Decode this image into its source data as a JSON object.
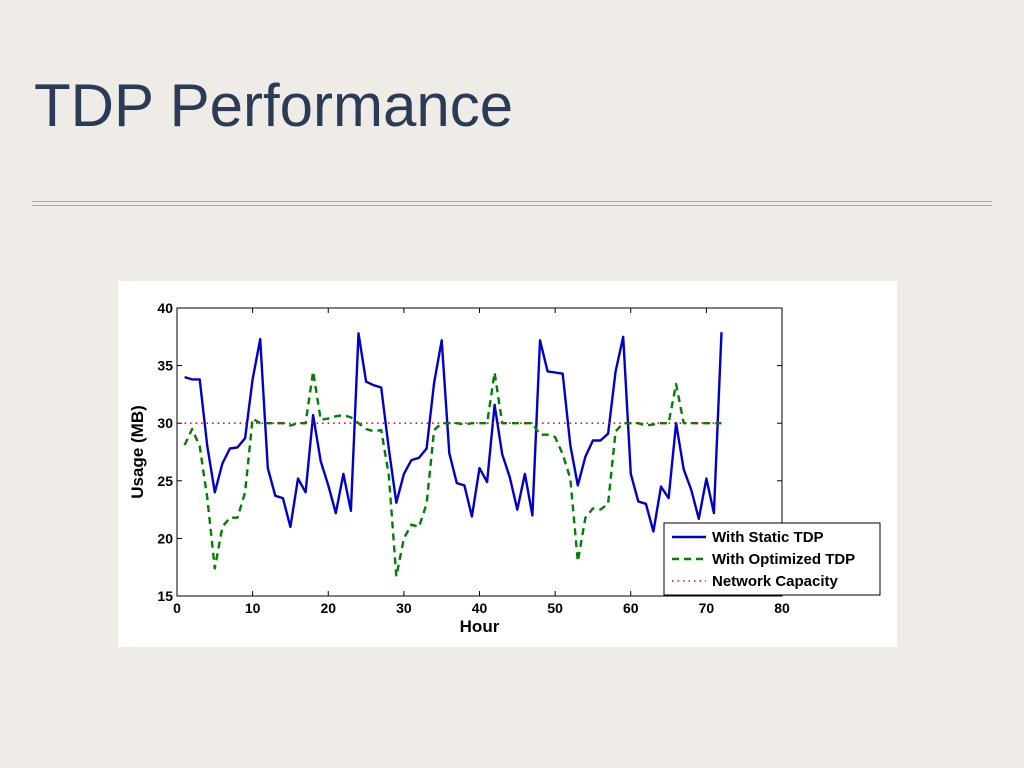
{
  "slide": {
    "title": "TDP Performance"
  },
  "chart_data": {
    "type": "line",
    "title": "",
    "xlabel": "Hour",
    "ylabel": "Usage (MB)",
    "xlim": [
      0,
      80
    ],
    "ylim": [
      15,
      40
    ],
    "xticks": [
      0,
      10,
      20,
      30,
      40,
      50,
      60,
      70,
      80
    ],
    "yticks": [
      15,
      20,
      25,
      30,
      35,
      40
    ],
    "grid": false,
    "legend_position": "bottom-right",
    "series": [
      {
        "name": "With Static TDP",
        "color": "#0000cc",
        "style": "solid",
        "x": [
          1,
          2,
          3,
          4,
          5,
          6,
          7,
          8,
          9,
          10,
          11,
          12,
          13,
          14,
          15,
          16,
          17,
          18,
          19,
          20,
          21,
          22,
          23,
          24,
          25,
          26,
          27,
          28,
          29,
          30,
          31,
          32,
          33,
          34,
          35,
          36,
          37,
          38,
          39,
          40,
          41,
          42,
          43,
          44,
          45,
          46,
          47,
          48,
          49,
          50,
          51,
          52,
          53,
          54,
          55,
          56,
          57,
          58,
          59,
          60,
          61,
          62,
          63,
          64,
          65,
          66,
          67,
          68,
          69,
          70,
          71,
          72
        ],
        "y": [
          34.0,
          33.8,
          33.8,
          28.0,
          24.0,
          26.5,
          27.8,
          27.9,
          28.7,
          33.8,
          37.3,
          26.1,
          23.7,
          23.5,
          21.0,
          25.2,
          24.0,
          30.7,
          26.7,
          24.6,
          22.2,
          25.6,
          22.4,
          37.8,
          33.6,
          33.3,
          33.1,
          27.8,
          23.1,
          25.6,
          26.8,
          27.0,
          27.8,
          33.5,
          37.2,
          27.4,
          24.8,
          24.6,
          21.9,
          26.1,
          24.9,
          31.6,
          27.3,
          25.3,
          22.5,
          25.6,
          22.0,
          37.2,
          34.5,
          34.4,
          34.3,
          28.1,
          24.6,
          27.1,
          28.5,
          28.5,
          29.1,
          34.5,
          37.5,
          25.6,
          23.2,
          23.0,
          20.6,
          24.5,
          23.5,
          30.0,
          26.0,
          24.2,
          21.7,
          25.2,
          22.2,
          37.9
        ]
      },
      {
        "name": "With Optimized TDP",
        "color": "#008000",
        "style": "dashed",
        "x": [
          1,
          2,
          3,
          4,
          5,
          6,
          7,
          8,
          9,
          10,
          11,
          12,
          13,
          14,
          15,
          16,
          17,
          18,
          19,
          20,
          21,
          22,
          23,
          24,
          25,
          26,
          27,
          28,
          29,
          30,
          31,
          32,
          33,
          34,
          35,
          36,
          37,
          38,
          39,
          40,
          41,
          42,
          43,
          44,
          45,
          46,
          47,
          48,
          49,
          50,
          51,
          52,
          53,
          54,
          55,
          56,
          57,
          58,
          59,
          60,
          61,
          62,
          63,
          64,
          65,
          66,
          67,
          68,
          69,
          70,
          71,
          72
        ],
        "y": [
          28.1,
          29.5,
          28.0,
          23.5,
          17.4,
          21.0,
          21.8,
          21.8,
          24.0,
          30.4,
          30.0,
          30.0,
          30.0,
          30.0,
          29.8,
          30.0,
          30.0,
          34.5,
          30.3,
          30.4,
          30.6,
          30.7,
          30.5,
          30.0,
          29.5,
          29.3,
          29.4,
          25.5,
          16.7,
          20.0,
          21.2,
          21.0,
          23.0,
          29.4,
          30.0,
          30.0,
          30.0,
          29.9,
          30.0,
          30.0,
          30.0,
          34.4,
          30.0,
          30.0,
          30.0,
          30.0,
          30.0,
          29.0,
          29.0,
          28.8,
          27.3,
          25.2,
          18.0,
          21.8,
          22.6,
          22.5,
          23.0,
          29.3,
          30.0,
          30.0,
          30.0,
          29.8,
          29.9,
          30.0,
          30.0,
          33.4,
          30.0,
          30.0,
          30.0,
          30.0,
          30.0,
          30.0
        ]
      },
      {
        "name": "Network Capacity",
        "color": "#ff0000",
        "style": "dotted",
        "x": [
          1,
          72
        ],
        "y": [
          30.0,
          30.0
        ]
      }
    ]
  }
}
